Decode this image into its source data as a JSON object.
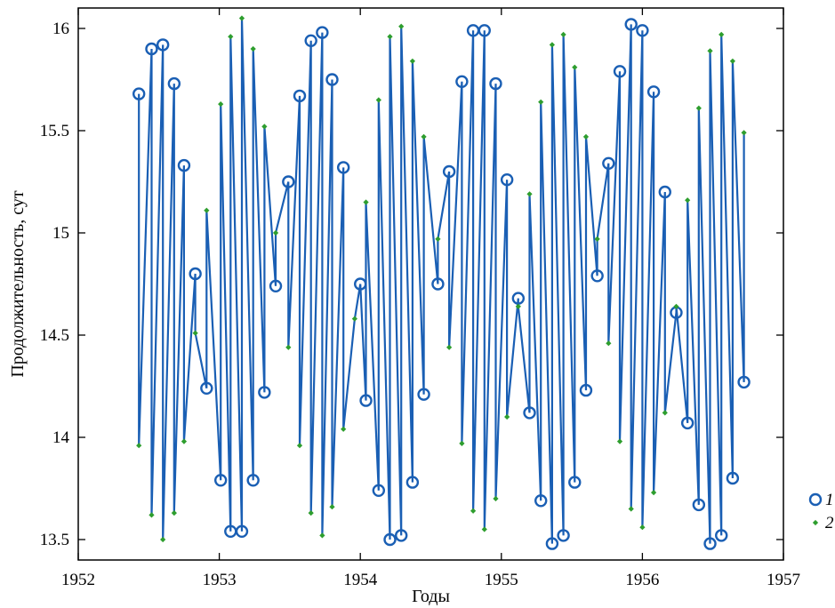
{
  "chart_data": {
    "type": "line",
    "title": "",
    "xlabel": "Годы",
    "ylabel": "Продолжительность, сут",
    "xlim": [
      1952,
      1957
    ],
    "ylim": [
      13.4,
      16.1
    ],
    "xticks": [
      1952,
      1953,
      1954,
      1955,
      1956,
      1957
    ],
    "xtick_labels": [
      "1952",
      "1953",
      "1954",
      "1955",
      "1956",
      "1957"
    ],
    "yticks": [
      13.5,
      14,
      14.5,
      15,
      15.5,
      16
    ],
    "ytick_labels": [
      "13.5",
      "14",
      "14.5",
      "15",
      "15.5",
      "16"
    ],
    "grid": false,
    "legend_position": "right",
    "colors": {
      "series1": "#1a5fb4",
      "series2": "#2e9e2e",
      "line": "#1a5fb4"
    },
    "series": [
      {
        "name": "1",
        "marker": "circle",
        "x": [
          1952.43,
          1952.52,
          1952.6,
          1952.68,
          1952.75,
          1952.83,
          1952.91,
          1953.01,
          1953.08,
          1953.16,
          1953.24,
          1953.32,
          1953.4,
          1953.49,
          1953.57,
          1953.65,
          1953.73,
          1953.8,
          1953.88,
          1954.0,
          1954.04,
          1954.13,
          1954.21,
          1954.29,
          1954.37,
          1954.45,
          1954.55,
          1954.63,
          1954.72,
          1954.8,
          1954.88,
          1954.96,
          1955.04,
          1955.12,
          1955.2,
          1955.28,
          1955.36,
          1955.44,
          1955.52,
          1955.6,
          1955.68,
          1955.76,
          1955.84,
          1955.92,
          1956.0,
          1956.08,
          1956.16,
          1956.24,
          1956.32,
          1956.4,
          1956.48,
          1956.56,
          1956.64,
          1956.72
        ],
        "values": [
          15.68,
          15.9,
          15.92,
          15.73,
          15.33,
          14.8,
          14.24,
          13.79,
          13.54,
          13.54,
          13.79,
          14.22,
          14.74,
          15.25,
          15.67,
          15.94,
          15.98,
          15.75,
          15.32,
          14.75,
          14.18,
          13.74,
          13.5,
          13.52,
          13.78,
          14.21,
          14.75,
          15.3,
          15.74,
          15.99,
          15.99,
          15.73,
          15.26,
          14.68,
          14.12,
          13.69,
          13.48,
          13.52,
          13.78,
          14.23,
          14.79,
          15.34,
          15.79,
          16.02,
          15.99,
          15.69,
          15.2,
          14.61,
          14.07,
          13.67,
          13.48,
          13.52,
          13.8,
          14.27
        ]
      },
      {
        "name": "2",
        "marker": "dot",
        "x": [
          1952.43,
          1952.52,
          1952.6,
          1952.68,
          1952.75,
          1952.83,
          1952.91,
          1953.01,
          1953.08,
          1953.16,
          1953.24,
          1953.32,
          1953.4,
          1953.49,
          1953.57,
          1953.65,
          1953.73,
          1953.8,
          1953.88,
          1953.96,
          1954.04,
          1954.13,
          1954.21,
          1954.29,
          1954.37,
          1954.45,
          1954.55,
          1954.63,
          1954.72,
          1954.8,
          1954.88,
          1954.96,
          1955.04,
          1955.12,
          1955.2,
          1955.28,
          1955.36,
          1955.44,
          1955.52,
          1955.6,
          1955.68,
          1955.76,
          1955.84,
          1955.92,
          1956.0,
          1956.08,
          1956.16,
          1956.24,
          1956.32,
          1956.4,
          1956.48,
          1956.56,
          1956.64,
          1956.72
        ],
        "values": [
          13.96,
          13.62,
          13.5,
          13.63,
          13.98,
          14.51,
          15.11,
          15.63,
          15.96,
          16.05,
          15.9,
          15.52,
          15.0,
          14.44,
          13.96,
          13.63,
          13.52,
          13.66,
          14.04,
          14.58,
          15.15,
          15.65,
          15.96,
          16.01,
          15.84,
          15.47,
          14.97,
          14.44,
          13.97,
          13.64,
          13.55,
          13.7,
          14.1,
          14.64,
          15.19,
          15.64,
          15.92,
          15.97,
          15.81,
          15.47,
          14.97,
          14.46,
          13.98,
          13.65,
          13.56,
          13.73,
          14.12,
          14.64,
          15.16,
          15.61,
          15.89,
          15.97,
          15.84,
          15.49
        ]
      }
    ]
  }
}
